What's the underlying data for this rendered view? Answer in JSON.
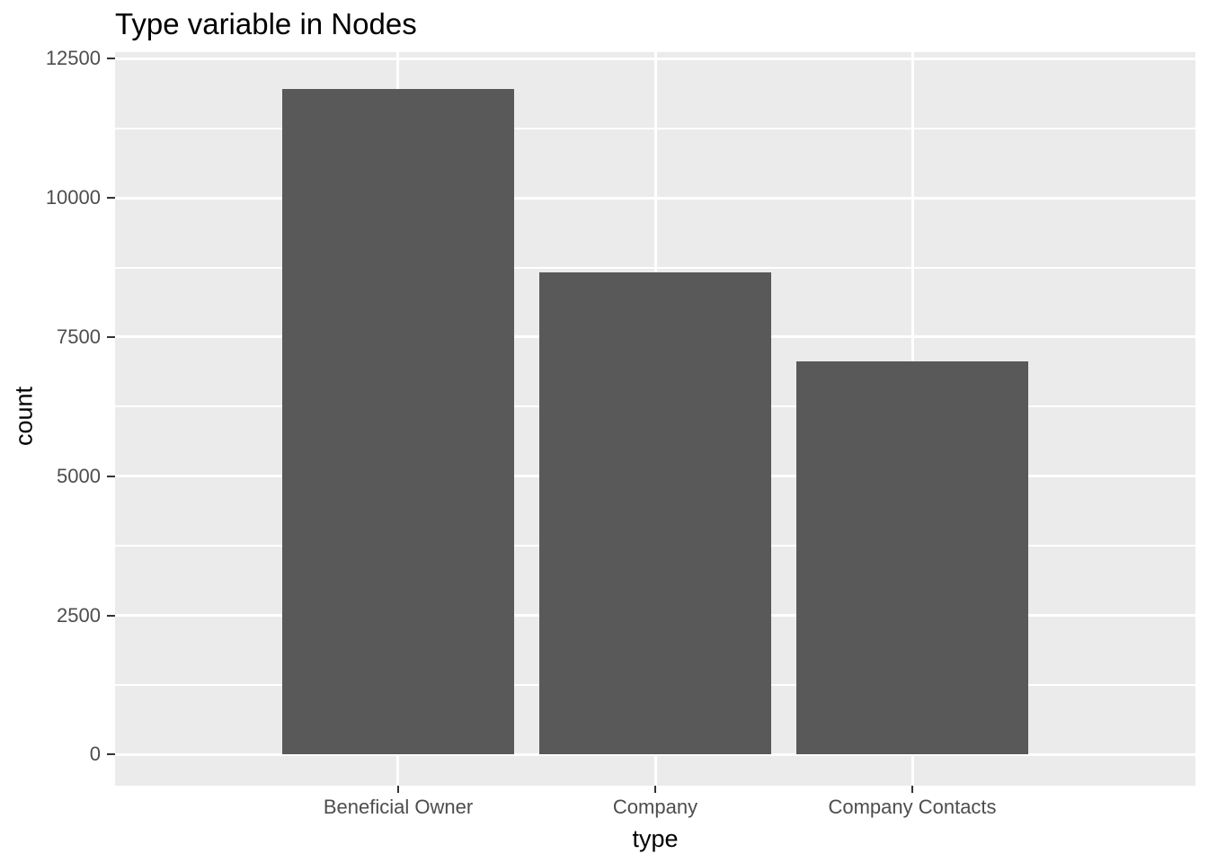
{
  "chart_data": {
    "type": "bar",
    "title": "Type variable in Nodes",
    "xlabel": "type",
    "ylabel": "count",
    "categories": [
      "Beneficial Owner",
      "Company",
      "Company Contacts"
    ],
    "values": [
      11950,
      8660,
      7065
    ],
    "yticks": [
      0,
      2500,
      5000,
      7500,
      10000,
      12500
    ],
    "ytick_labels": [
      "0",
      "2500",
      "5000",
      "7500",
      "10000",
      "12500"
    ],
    "yminor": [
      1250,
      3750,
      6250,
      8750,
      11250
    ],
    "ylim": [
      0,
      12500
    ],
    "panel_domain": [
      -560,
      12620
    ],
    "bar_width_ratio": 0.9,
    "category_expand": 0.6,
    "legend_position": "none",
    "grid": {
      "horizontal": "major+minor",
      "vertical": "major-at-categories"
    },
    "colors": {
      "background": "#FFFFFF",
      "panel_background": "#EBEBEB",
      "gridline": "#FFFFFF",
      "bar_fill": "#595959",
      "tick_label": "#4D4D4D",
      "axis_title": "#000000",
      "title": "#000000",
      "tick_mark": "#333333"
    }
  }
}
